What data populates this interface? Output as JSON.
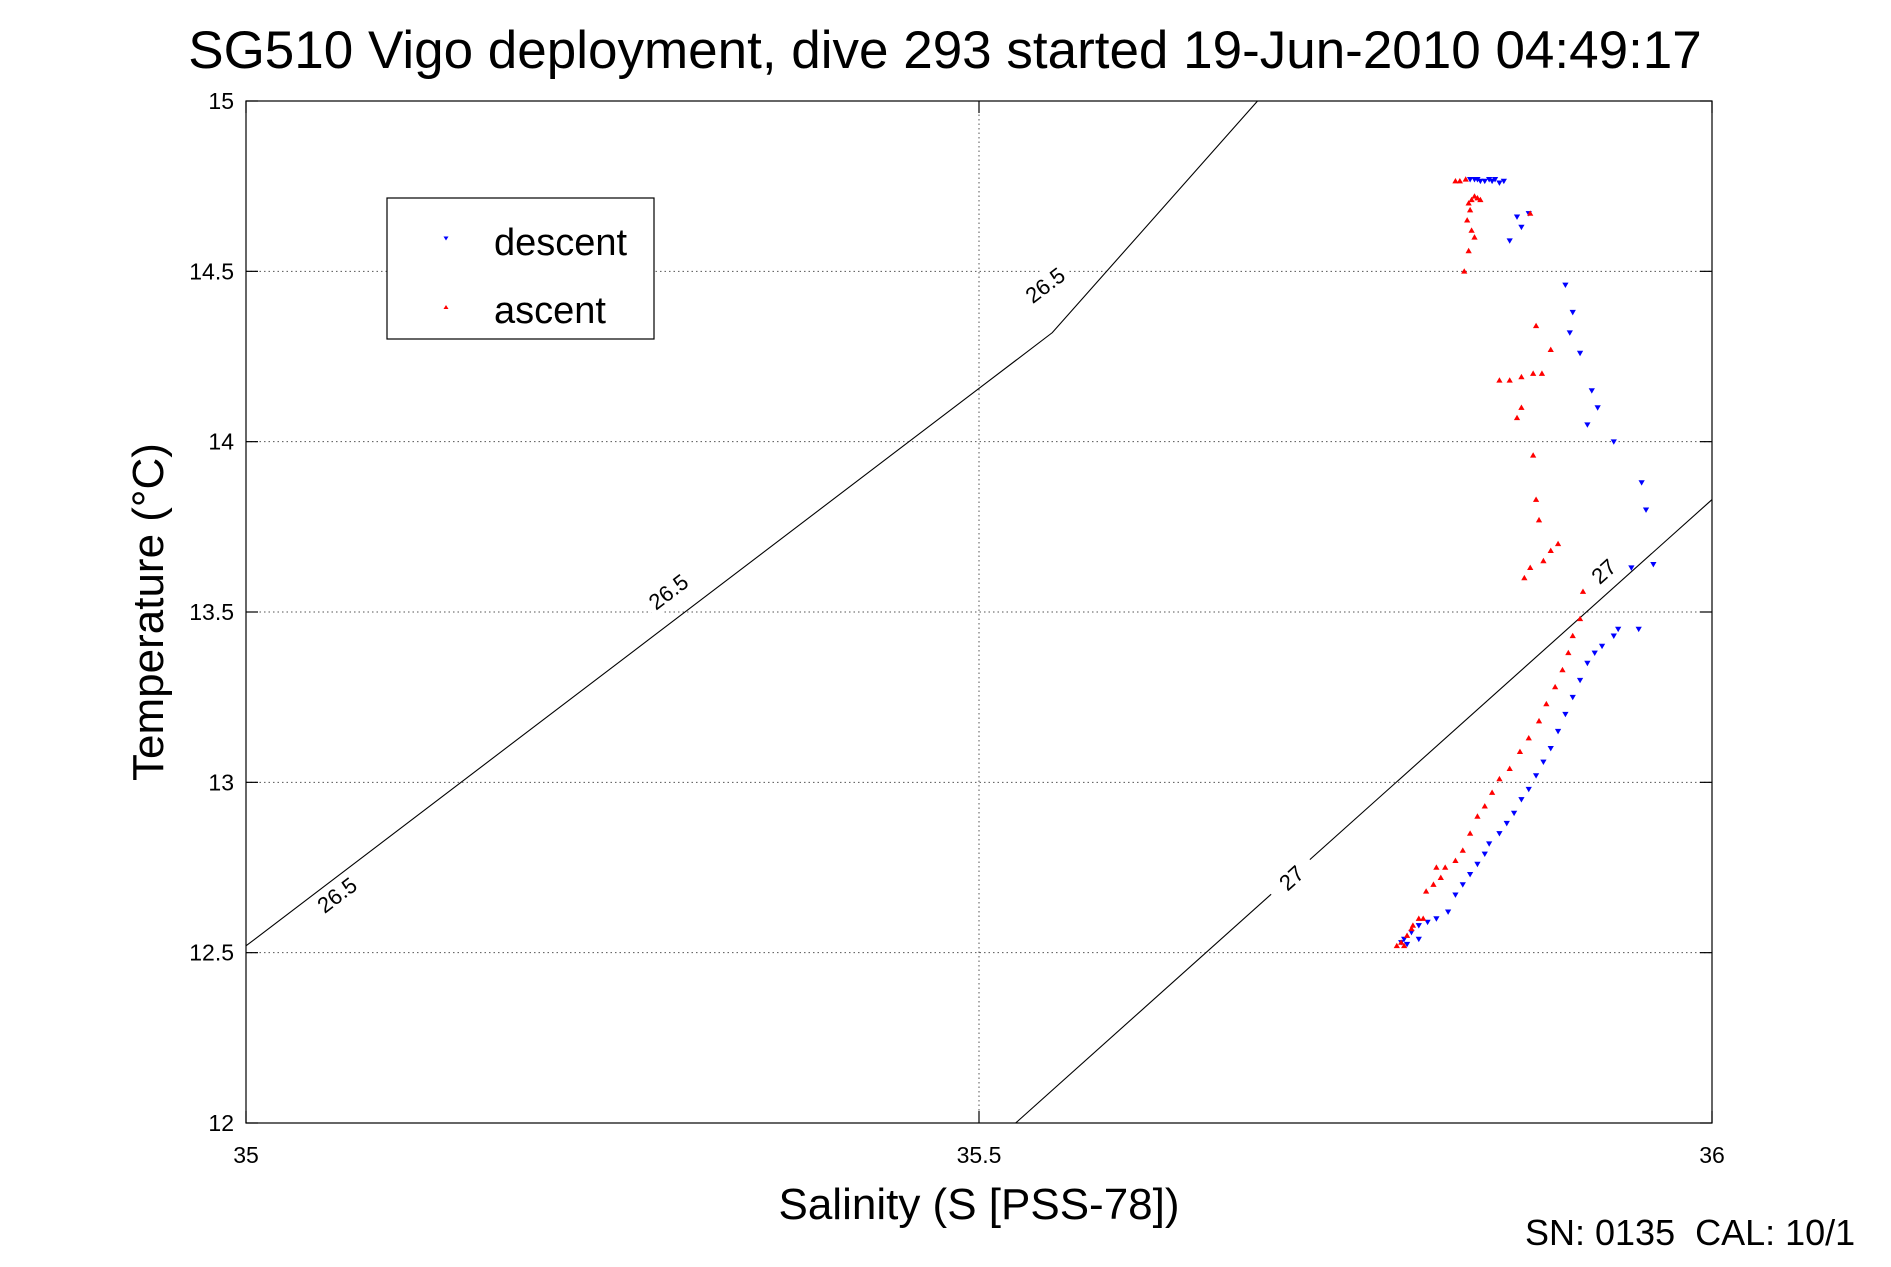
{
  "chart_data": {
    "type": "scatter",
    "title": "SG510 Vigo deployment, dive 293 started 19-Jun-2010 04:49:17",
    "xlabel": "Salinity (S [PSS-78])",
    "ylabel": "Temperature (°C)",
    "xlim": [
      35,
      36
    ],
    "ylim": [
      12,
      15
    ],
    "xticks": [
      "35",
      "35.5",
      "36"
    ],
    "yticks": [
      "12",
      "12.5",
      "13",
      "13.5",
      "14",
      "14.5",
      "15"
    ],
    "grid": true,
    "legend_position": "top-left",
    "footer": "SN: 0135  CAL: 10/1",
    "density_contours": [
      {
        "label": "26.5",
        "points": [
          [
            35.0,
            12.52
          ],
          [
            35.55,
            14.32
          ],
          [
            35.69,
            15.0
          ]
        ],
        "label_positions": [
          [
            35.062,
            12.67
          ],
          [
            35.288,
            13.56
          ],
          [
            35.545,
            14.46
          ]
        ]
      },
      {
        "label": "27",
        "points": [
          [
            35.525,
            12.0
          ],
          [
            36.0,
            13.83
          ]
        ],
        "label_positions": [
          [
            35.713,
            12.72
          ],
          [
            35.926,
            13.62
          ]
        ]
      }
    ],
    "series": [
      {
        "name": "descent",
        "color": "#0000ff",
        "marker": "triangle-down",
        "points": [
          [
            35.835,
            14.77
          ],
          [
            35.838,
            14.77
          ],
          [
            35.84,
            14.77
          ],
          [
            35.842,
            14.765
          ],
          [
            35.845,
            14.765
          ],
          [
            35.848,
            14.77
          ],
          [
            35.85,
            14.765
          ],
          [
            35.852,
            14.77
          ],
          [
            35.855,
            14.76
          ],
          [
            35.858,
            14.765
          ],
          [
            35.867,
            14.66
          ],
          [
            35.87,
            14.63
          ],
          [
            35.862,
            14.59
          ],
          [
            35.875,
            14.67
          ],
          [
            35.9,
            14.46
          ],
          [
            35.905,
            14.38
          ],
          [
            35.903,
            14.32
          ],
          [
            35.91,
            14.26
          ],
          [
            35.918,
            14.15
          ],
          [
            35.922,
            14.1
          ],
          [
            35.915,
            14.05
          ],
          [
            35.933,
            14.0
          ],
          [
            35.952,
            13.88
          ],
          [
            35.955,
            13.8
          ],
          [
            35.945,
            13.63
          ],
          [
            35.96,
            13.64
          ],
          [
            35.95,
            13.45
          ],
          [
            35.936,
            13.45
          ],
          [
            35.933,
            13.43
          ],
          [
            35.925,
            13.4
          ],
          [
            35.92,
            13.38
          ],
          [
            35.915,
            13.35
          ],
          [
            35.91,
            13.3
          ],
          [
            35.905,
            13.25
          ],
          [
            35.9,
            13.2
          ],
          [
            35.895,
            13.15
          ],
          [
            35.89,
            13.1
          ],
          [
            35.885,
            13.06
          ],
          [
            35.88,
            13.02
          ],
          [
            35.875,
            12.98
          ],
          [
            35.87,
            12.95
          ],
          [
            35.865,
            12.91
          ],
          [
            35.86,
            12.88
          ],
          [
            35.855,
            12.85
          ],
          [
            35.848,
            12.82
          ],
          [
            35.845,
            12.79
          ],
          [
            35.84,
            12.76
          ],
          [
            35.835,
            12.73
          ],
          [
            35.83,
            12.7
          ],
          [
            35.825,
            12.67
          ],
          [
            35.82,
            12.62
          ],
          [
            35.812,
            12.6
          ],
          [
            35.806,
            12.59
          ],
          [
            35.8,
            12.58
          ],
          [
            35.795,
            12.56
          ],
          [
            35.79,
            12.54
          ],
          [
            35.788,
            12.53
          ],
          [
            35.792,
            12.525
          ],
          [
            35.8,
            12.54
          ]
        ]
      },
      {
        "name": "ascent",
        "color": "#ff0000",
        "marker": "triangle-up",
        "points": [
          [
            35.825,
            14.765
          ],
          [
            35.828,
            14.765
          ],
          [
            35.832,
            14.77
          ],
          [
            35.838,
            14.72
          ],
          [
            35.84,
            14.715
          ],
          [
            35.842,
            14.71
          ],
          [
            35.836,
            14.71
          ],
          [
            35.834,
            14.7
          ],
          [
            35.835,
            14.68
          ],
          [
            35.833,
            14.65
          ],
          [
            35.836,
            14.62
          ],
          [
            35.838,
            14.6
          ],
          [
            35.834,
            14.56
          ],
          [
            35.831,
            14.5
          ],
          [
            35.876,
            14.67
          ],
          [
            35.88,
            14.34
          ],
          [
            35.89,
            14.27
          ],
          [
            35.884,
            14.2
          ],
          [
            35.878,
            14.2
          ],
          [
            35.87,
            14.19
          ],
          [
            35.855,
            14.18
          ],
          [
            35.862,
            14.18
          ],
          [
            35.87,
            14.1
          ],
          [
            35.867,
            14.07
          ],
          [
            35.878,
            13.96
          ],
          [
            35.88,
            13.83
          ],
          [
            35.882,
            13.77
          ],
          [
            35.895,
            13.7
          ],
          [
            35.89,
            13.68
          ],
          [
            35.885,
            13.65
          ],
          [
            35.876,
            13.63
          ],
          [
            35.872,
            13.6
          ],
          [
            35.912,
            13.56
          ],
          [
            35.91,
            13.48
          ],
          [
            35.905,
            13.43
          ],
          [
            35.902,
            13.38
          ],
          [
            35.898,
            13.33
          ],
          [
            35.893,
            13.28
          ],
          [
            35.887,
            13.23
          ],
          [
            35.882,
            13.18
          ],
          [
            35.875,
            13.13
          ],
          [
            35.869,
            13.09
          ],
          [
            35.862,
            13.04
          ],
          [
            35.855,
            13.01
          ],
          [
            35.85,
            12.97
          ],
          [
            35.845,
            12.93
          ],
          [
            35.84,
            12.9
          ],
          [
            35.835,
            12.85
          ],
          [
            35.83,
            12.8
          ],
          [
            35.825,
            12.77
          ],
          [
            35.818,
            12.75
          ],
          [
            35.812,
            12.75
          ],
          [
            35.815,
            12.72
          ],
          [
            35.81,
            12.7
          ],
          [
            35.805,
            12.68
          ],
          [
            35.8,
            12.6
          ],
          [
            35.796,
            12.58
          ],
          [
            35.792,
            12.55
          ],
          [
            35.788,
            12.53
          ],
          [
            35.785,
            12.52
          ],
          [
            35.79,
            12.52
          ],
          [
            35.795,
            12.57
          ],
          [
            35.803,
            12.6
          ]
        ]
      }
    ]
  }
}
